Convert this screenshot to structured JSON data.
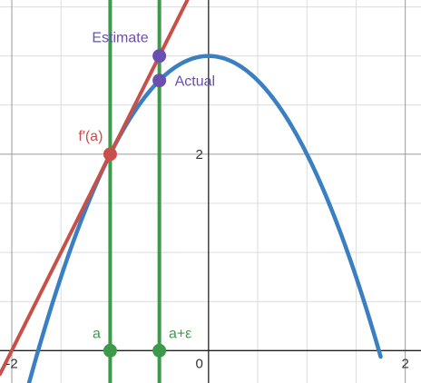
{
  "chart_data": {
    "type": "line",
    "title": "",
    "xlabel": "",
    "ylabel": "",
    "xlim": [
      -2.12,
      2.16
    ],
    "ylim": [
      -0.33,
      3.57
    ],
    "grid": true,
    "minor_grid_step": 0.5,
    "major_grid_step": 2,
    "x_ticks": [
      -2,
      0,
      2
    ],
    "y_ticks": [
      2
    ],
    "tick_labels": {
      "x": [
        "-2",
        "0",
        "2"
      ],
      "y": [
        "2"
      ]
    },
    "series": [
      {
        "kind": "curve",
        "function": "3 - x^2",
        "color": "#3a7fc1",
        "x_range": [
          -1.85,
          1.75
        ]
      },
      {
        "kind": "line",
        "slope": 2,
        "point": [
          -1,
          2
        ],
        "color": "#c8504a"
      },
      {
        "kind": "vertical",
        "x": -1,
        "color": "#3d9a4b"
      },
      {
        "kind": "vertical",
        "x": -0.5,
        "color": "#3d9a4b"
      }
    ],
    "points": [
      {
        "name": "a",
        "x": -1,
        "y": 0,
        "color": "#3d9a4b"
      },
      {
        "name": "a+ε",
        "x": -0.5,
        "y": 0,
        "color": "#3d9a4b"
      },
      {
        "name": "f'(a)",
        "x": -1,
        "y": 2,
        "color": "#c8504a"
      },
      {
        "name": "Estimate",
        "x": -0.5,
        "y": 3,
        "color": "#6a4fb0"
      },
      {
        "name": "Actual",
        "x": -0.5,
        "y": 2.75,
        "color": "#6a4fb0"
      }
    ],
    "annotations": {
      "a": "a",
      "a_eps": "a+ε",
      "fprime": "f′(a)",
      "estimate": "Estimate",
      "actual": "Actual"
    }
  }
}
